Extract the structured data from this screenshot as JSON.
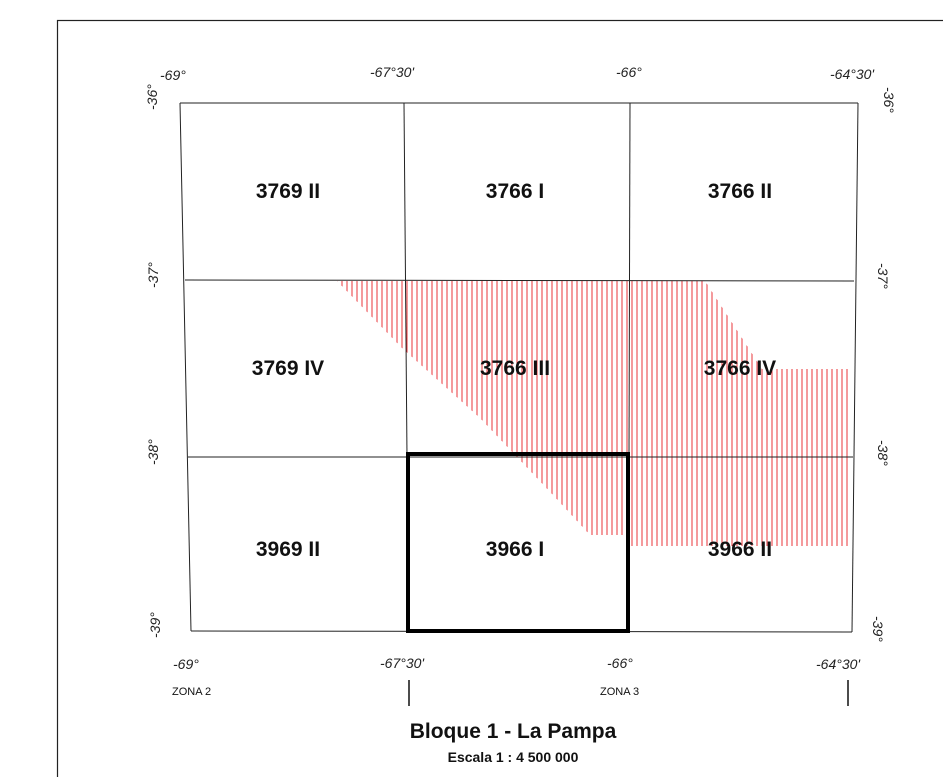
{
  "title": "Bloque 1 - La Pampa",
  "scale": "Escala 1 : 4 500 000",
  "zones": [
    "ZONA 2",
    "ZONA 3"
  ],
  "longitude_labels": [
    "-69°",
    "-67°30'",
    "-66°",
    "-64°30'"
  ],
  "latitude_labels": [
    "-36°",
    "-37°",
    "-38°",
    "-39°"
  ],
  "sheets": [
    {
      "label": "3769 II",
      "row": 0,
      "col": 0
    },
    {
      "label": "3766 I",
      "row": 0,
      "col": 1
    },
    {
      "label": "3766 II",
      "row": 0,
      "col": 2
    },
    {
      "label": "3769 IV",
      "row": 1,
      "col": 0
    },
    {
      "label": "3766 III",
      "row": 1,
      "col": 1
    },
    {
      "label": "3766 IV",
      "row": 1,
      "col": 2
    },
    {
      "label": "3969 II",
      "row": 2,
      "col": 0
    },
    {
      "label": "3966 I",
      "row": 2,
      "col": 1,
      "highlighted": true
    },
    {
      "label": "3966 II",
      "row": 2,
      "col": 2
    }
  ],
  "colors": {
    "hatch": "#e8343a",
    "grid": "#222222",
    "highlight": "#000000"
  }
}
